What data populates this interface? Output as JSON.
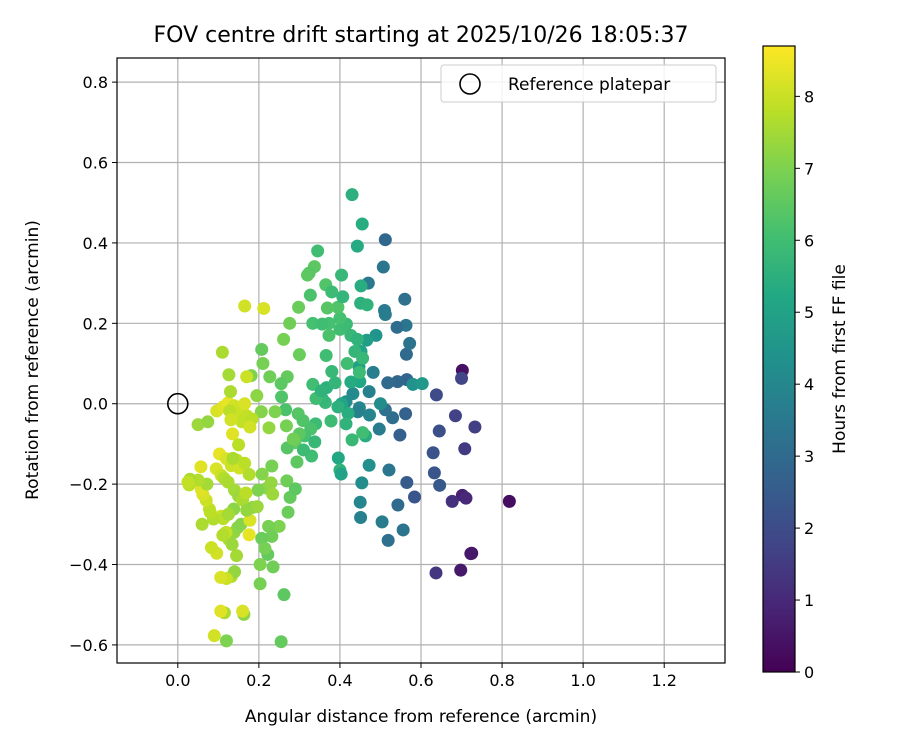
{
  "chart_data": {
    "type": "scatter",
    "title": "FOV centre drift starting at 2025/10/26 18:05:37",
    "xlabel": "Angular distance from reference (arcmin)",
    "ylabel": "Rotation from reference (arcmin)",
    "xlim": [
      -0.15,
      1.35
    ],
    "ylim": [
      -0.645,
      0.86
    ],
    "xticks": [
      0.0,
      0.2,
      0.4,
      0.6,
      0.8,
      1.0,
      1.2
    ],
    "yticks": [
      -0.6,
      -0.4,
      -0.2,
      0.0,
      0.2,
      0.4,
      0.6,
      0.8
    ],
    "xtick_labels": [
      "0.0",
      "0.2",
      "0.4",
      "0.6",
      "0.8",
      "1.0",
      "1.2"
    ],
    "ytick_labels": [
      "−0.6",
      "−0.4",
      "−0.2",
      "0.0",
      "0.2",
      "0.4",
      "0.6",
      "0.8"
    ],
    "grid": true,
    "legend": {
      "label": "Reference platepar",
      "position": "top-right"
    },
    "reference_point": {
      "x": 0.0,
      "y": 0.0
    },
    "colorbar": {
      "label": "Hours from first FF file",
      "range": [
        0,
        8.7
      ],
      "ticks": [
        0,
        1,
        2,
        3,
        4,
        5,
        6,
        7,
        8
      ],
      "tick_labels": [
        "0",
        "1",
        "2",
        "3",
        "4",
        "5",
        "6",
        "7",
        "8"
      ],
      "colormap": "viridis"
    },
    "points": [
      {
        "x": 0.818,
        "y": -0.243,
        "c": 0.3
      },
      {
        "x": 0.725,
        "y": -0.372,
        "c": 0.2
      },
      {
        "x": 0.723,
        "y": -0.373,
        "c": 0.6
      },
      {
        "x": 0.702,
        "y": 0.083,
        "c": 0.4
      },
      {
        "x": 0.698,
        "y": -0.414,
        "c": 0.6
      },
      {
        "x": 0.702,
        "y": -0.228,
        "c": 0.8
      },
      {
        "x": 0.711,
        "y": -0.235,
        "c": 1.0
      },
      {
        "x": 0.677,
        "y": -0.243,
        "c": 1.2
      },
      {
        "x": 0.637,
        "y": -0.421,
        "c": 1.4
      },
      {
        "x": 0.733,
        "y": -0.058,
        "c": 1.6
      },
      {
        "x": 0.7,
        "y": 0.063,
        "c": 1.8
      },
      {
        "x": 0.708,
        "y": -0.112,
        "c": 1.5
      },
      {
        "x": 0.685,
        "y": -0.03,
        "c": 1.7
      },
      {
        "x": 0.638,
        "y": 0.022,
        "c": 2.0
      },
      {
        "x": 0.645,
        "y": -0.068,
        "c": 2.1
      },
      {
        "x": 0.63,
        "y": -0.122,
        "c": 2.2
      },
      {
        "x": 0.633,
        "y": -0.172,
        "c": 2.3
      },
      {
        "x": 0.646,
        "y": -0.203,
        "c": 2.4
      },
      {
        "x": 0.584,
        "y": -0.232,
        "c": 2.3
      },
      {
        "x": 0.565,
        "y": -0.196,
        "c": 2.5
      },
      {
        "x": 0.548,
        "y": -0.078,
        "c": 2.6
      },
      {
        "x": 0.562,
        "y": -0.025,
        "c": 2.7
      },
      {
        "x": 0.565,
        "y": 0.06,
        "c": 2.8
      },
      {
        "x": 0.542,
        "y": 0.055,
        "c": 2.9
      },
      {
        "x": 0.518,
        "y": 0.052,
        "c": 3.0
      },
      {
        "x": 0.53,
        "y": -0.035,
        "c": 3.1
      },
      {
        "x": 0.512,
        "y": -0.015,
        "c": 3.2
      },
      {
        "x": 0.564,
        "y": 0.123,
        "c": 3.0
      },
      {
        "x": 0.56,
        "y": 0.26,
        "c": 3.2
      },
      {
        "x": 0.563,
        "y": 0.195,
        "c": 3.4
      },
      {
        "x": 0.572,
        "y": 0.15,
        "c": 3.3
      },
      {
        "x": 0.541,
        "y": 0.19,
        "c": 3.1
      },
      {
        "x": 0.512,
        "y": 0.408,
        "c": 2.9
      },
      {
        "x": 0.51,
        "y": 0.232,
        "c": 3.5
      },
      {
        "x": 0.512,
        "y": 0.222,
        "c": 3.6
      },
      {
        "x": 0.507,
        "y": 0.34,
        "c": 3.4
      },
      {
        "x": 0.47,
        "y": 0.3,
        "c": 3.5
      },
      {
        "x": 0.482,
        "y": 0.078,
        "c": 3.7
      },
      {
        "x": 0.472,
        "y": 0.03,
        "c": 3.8
      },
      {
        "x": 0.473,
        "y": -0.028,
        "c": 3.9
      },
      {
        "x": 0.448,
        "y": -0.01,
        "c": 4.0
      },
      {
        "x": 0.444,
        "y": -0.02,
        "c": 3.8
      },
      {
        "x": 0.432,
        "y": 0.025,
        "c": 4.1
      },
      {
        "x": 0.415,
        "y": 0.005,
        "c": 4.2
      },
      {
        "x": 0.497,
        "y": -0.063,
        "c": 3.6
      },
      {
        "x": 0.521,
        "y": -0.165,
        "c": 3.4
      },
      {
        "x": 0.556,
        "y": -0.314,
        "c": 3.3
      },
      {
        "x": 0.543,
        "y": -0.252,
        "c": 3.0
      },
      {
        "x": 0.519,
        "y": -0.34,
        "c": 3.2
      },
      {
        "x": 0.504,
        "y": -0.294,
        "c": 3.6
      },
      {
        "x": 0.451,
        "y": -0.283,
        "c": 3.8
      },
      {
        "x": 0.45,
        "y": -0.245,
        "c": 4.0
      },
      {
        "x": 0.454,
        "y": -0.197,
        "c": 4.2
      },
      {
        "x": 0.472,
        "y": -0.153,
        "c": 4.3
      },
      {
        "x": 0.58,
        "y": 0.048,
        "c": 4.4
      },
      {
        "x": 0.603,
        "y": 0.05,
        "c": 4.6
      },
      {
        "x": 0.5,
        "y": 0.0,
        "c": 4.2
      },
      {
        "x": 0.489,
        "y": 0.17,
        "c": 4.5
      },
      {
        "x": 0.466,
        "y": 0.158,
        "c": 4.8
      },
      {
        "x": 0.452,
        "y": 0.13,
        "c": 5.0
      },
      {
        "x": 0.447,
        "y": 0.092,
        "c": 4.9
      },
      {
        "x": 0.449,
        "y": 0.055,
        "c": 5.2
      },
      {
        "x": 0.427,
        "y": 0.054,
        "c": 5.3
      },
      {
        "x": 0.42,
        "y": -0.024,
        "c": 5.4
      },
      {
        "x": 0.404,
        "y": 0.0,
        "c": 5.1
      },
      {
        "x": 0.395,
        "y": -0.008,
        "c": 5.5
      },
      {
        "x": 0.415,
        "y": -0.05,
        "c": 5.6
      },
      {
        "x": 0.396,
        "y": -0.135,
        "c": 5.2
      },
      {
        "x": 0.4,
        "y": -0.165,
        "c": 5.6
      },
      {
        "x": 0.403,
        "y": -0.175,
        "c": 5.0
      },
      {
        "x": 0.43,
        "y": -0.09,
        "c": 5.8
      },
      {
        "x": 0.463,
        "y": -0.08,
        "c": 5.4
      },
      {
        "x": 0.456,
        "y": -0.072,
        "c": 6.0
      },
      {
        "x": 0.378,
        "y": -0.043,
        "c": 5.9
      },
      {
        "x": 0.364,
        "y": 0.003,
        "c": 5.8
      },
      {
        "x": 0.367,
        "y": 0.04,
        "c": 5.5
      },
      {
        "x": 0.356,
        "y": 0.013,
        "c": 5.7
      },
      {
        "x": 0.341,
        "y": 0.013,
        "c": 6.0
      },
      {
        "x": 0.34,
        "y": -0.05,
        "c": 5.9
      },
      {
        "x": 0.333,
        "y": 0.048,
        "c": 6.0
      },
      {
        "x": 0.354,
        "y": 0.032,
        "c": 5.6
      },
      {
        "x": 0.388,
        "y": 0.052,
        "c": 5.7
      },
      {
        "x": 0.38,
        "y": 0.08,
        "c": 5.8
      },
      {
        "x": 0.366,
        "y": 0.12,
        "c": 6.0
      },
      {
        "x": 0.373,
        "y": 0.17,
        "c": 6.2
      },
      {
        "x": 0.373,
        "y": 0.2,
        "c": 6.1
      },
      {
        "x": 0.4,
        "y": 0.185,
        "c": 6.0
      },
      {
        "x": 0.416,
        "y": 0.198,
        "c": 5.9
      },
      {
        "x": 0.427,
        "y": 0.17,
        "c": 5.8
      },
      {
        "x": 0.443,
        "y": 0.16,
        "c": 5.6
      },
      {
        "x": 0.437,
        "y": 0.13,
        "c": 5.7
      },
      {
        "x": 0.456,
        "y": 0.113,
        "c": 5.8
      },
      {
        "x": 0.448,
        "y": 0.078,
        "c": 5.9
      },
      {
        "x": 0.418,
        "y": 0.1,
        "c": 6.0
      },
      {
        "x": 0.4,
        "y": 0.213,
        "c": 6.1
      },
      {
        "x": 0.395,
        "y": 0.24,
        "c": 6.3
      },
      {
        "x": 0.369,
        "y": 0.238,
        "c": 6.4
      },
      {
        "x": 0.365,
        "y": 0.296,
        "c": 6.3
      },
      {
        "x": 0.337,
        "y": 0.341,
        "c": 6.5
      },
      {
        "x": 0.324,
        "y": 0.325,
        "c": 6.4
      },
      {
        "x": 0.327,
        "y": 0.27,
        "c": 6.2
      },
      {
        "x": 0.333,
        "y": 0.2,
        "c": 6.1
      },
      {
        "x": 0.356,
        "y": 0.198,
        "c": 6.0
      },
      {
        "x": 0.38,
        "y": 0.278,
        "c": 5.9
      },
      {
        "x": 0.407,
        "y": 0.266,
        "c": 5.7
      },
      {
        "x": 0.404,
        "y": 0.32,
        "c": 5.8
      },
      {
        "x": 0.43,
        "y": 0.52,
        "c": 5.5
      },
      {
        "x": 0.455,
        "y": 0.447,
        "c": 5.4
      },
      {
        "x": 0.443,
        "y": 0.392,
        "c": 5.3
      },
      {
        "x": 0.452,
        "y": 0.293,
        "c": 5.4
      },
      {
        "x": 0.451,
        "y": 0.25,
        "c": 5.5
      },
      {
        "x": 0.467,
        "y": 0.246,
        "c": 5.6
      },
      {
        "x": 0.345,
        "y": 0.38,
        "c": 6.0
      },
      {
        "x": 0.32,
        "y": 0.32,
        "c": 6.5
      },
      {
        "x": 0.298,
        "y": 0.24,
        "c": 6.7
      },
      {
        "x": 0.276,
        "y": 0.2,
        "c": 6.8
      },
      {
        "x": 0.261,
        "y": 0.16,
        "c": 6.9
      },
      {
        "x": 0.3,
        "y": 0.122,
        "c": 6.7
      },
      {
        "x": 0.27,
        "y": 0.067,
        "c": 6.6
      },
      {
        "x": 0.255,
        "y": 0.05,
        "c": 6.5
      },
      {
        "x": 0.256,
        "y": 0.017,
        "c": 6.3
      },
      {
        "x": 0.266,
        "y": -0.015,
        "c": 6.2
      },
      {
        "x": 0.297,
        "y": -0.025,
        "c": 6.4
      },
      {
        "x": 0.309,
        "y": -0.042,
        "c": 6.3
      },
      {
        "x": 0.328,
        "y": -0.063,
        "c": 6.2
      },
      {
        "x": 0.313,
        "y": -0.08,
        "c": 6.1
      },
      {
        "x": 0.3,
        "y": -0.075,
        "c": 6.5
      },
      {
        "x": 0.289,
        "y": -0.097,
        "c": 6.6
      },
      {
        "x": 0.27,
        "y": -0.11,
        "c": 6.4
      },
      {
        "x": 0.294,
        "y": -0.145,
        "c": 6.5
      },
      {
        "x": 0.33,
        "y": -0.13,
        "c": 6.0
      },
      {
        "x": 0.338,
        "y": -0.095,
        "c": 5.8
      },
      {
        "x": 0.31,
        "y": -0.115,
        "c": 5.9
      },
      {
        "x": 0.285,
        "y": -0.088,
        "c": 6.8
      },
      {
        "x": 0.268,
        "y": -0.055,
        "c": 6.9
      },
      {
        "x": 0.24,
        "y": -0.02,
        "c": 7.0
      },
      {
        "x": 0.227,
        "y": 0.067,
        "c": 6.8
      },
      {
        "x": 0.21,
        "y": 0.1,
        "c": 6.9
      },
      {
        "x": 0.207,
        "y": 0.135,
        "c": 6.6
      },
      {
        "x": 0.181,
        "y": 0.07,
        "c": 7.0
      },
      {
        "x": 0.195,
        "y": 0.02,
        "c": 7.2
      },
      {
        "x": 0.206,
        "y": -0.02,
        "c": 7.1
      },
      {
        "x": 0.225,
        "y": -0.06,
        "c": 7.3
      },
      {
        "x": 0.232,
        "y": -0.155,
        "c": 6.9
      },
      {
        "x": 0.208,
        "y": -0.175,
        "c": 7.1
      },
      {
        "x": 0.22,
        "y": -0.21,
        "c": 7.2
      },
      {
        "x": 0.198,
        "y": -0.215,
        "c": 7.0
      },
      {
        "x": 0.23,
        "y": -0.197,
        "c": 7.3
      },
      {
        "x": 0.234,
        "y": -0.225,
        "c": 7.4
      },
      {
        "x": 0.269,
        "y": -0.192,
        "c": 6.8
      },
      {
        "x": 0.277,
        "y": -0.233,
        "c": 6.6
      },
      {
        "x": 0.29,
        "y": -0.212,
        "c": 6.5
      },
      {
        "x": 0.272,
        "y": -0.27,
        "c": 6.7
      },
      {
        "x": 0.25,
        "y": -0.305,
        "c": 7.0
      },
      {
        "x": 0.224,
        "y": -0.305,
        "c": 6.9
      },
      {
        "x": 0.232,
        "y": -0.33,
        "c": 6.8
      },
      {
        "x": 0.207,
        "y": -0.335,
        "c": 6.7
      },
      {
        "x": 0.222,
        "y": -0.375,
        "c": 6.6
      },
      {
        "x": 0.215,
        "y": -0.36,
        "c": 6.9
      },
      {
        "x": 0.203,
        "y": -0.4,
        "c": 7.0
      },
      {
        "x": 0.235,
        "y": -0.406,
        "c": 6.8
      },
      {
        "x": 0.203,
        "y": -0.448,
        "c": 6.9
      },
      {
        "x": 0.262,
        "y": -0.475,
        "c": 6.5
      },
      {
        "x": 0.255,
        "y": -0.592,
        "c": 6.6
      },
      {
        "x": 0.163,
        "y": -0.524,
        "c": 7.2
      },
      {
        "x": 0.12,
        "y": -0.59,
        "c": 7.0
      },
      {
        "x": 0.115,
        "y": -0.52,
        "c": 7.6
      },
      {
        "x": 0.16,
        "y": -0.516,
        "c": 8.2
      },
      {
        "x": 0.106,
        "y": -0.516,
        "c": 8.3
      },
      {
        "x": 0.09,
        "y": -0.577,
        "c": 8.1
      },
      {
        "x": 0.132,
        "y": -0.43,
        "c": 7.7
      },
      {
        "x": 0.14,
        "y": -0.418,
        "c": 7.3
      },
      {
        "x": 0.12,
        "y": -0.435,
        "c": 8.0
      },
      {
        "x": 0.106,
        "y": -0.432,
        "c": 8.2
      },
      {
        "x": 0.145,
        "y": -0.378,
        "c": 7.5
      },
      {
        "x": 0.126,
        "y": -0.338,
        "c": 7.6
      },
      {
        "x": 0.134,
        "y": -0.35,
        "c": 7.4
      },
      {
        "x": 0.139,
        "y": -0.32,
        "c": 7.3
      },
      {
        "x": 0.148,
        "y": -0.308,
        "c": 7.2
      },
      {
        "x": 0.156,
        "y": -0.3,
        "c": 7.1
      },
      {
        "x": 0.178,
        "y": -0.29,
        "c": 8.2
      },
      {
        "x": 0.176,
        "y": -0.326,
        "c": 8.4
      },
      {
        "x": 0.119,
        "y": -0.32,
        "c": 7.9
      },
      {
        "x": 0.111,
        "y": -0.327,
        "c": 7.7
      },
      {
        "x": 0.096,
        "y": -0.372,
        "c": 8.1
      },
      {
        "x": 0.083,
        "y": -0.358,
        "c": 8.0
      },
      {
        "x": 0.107,
        "y": -0.28,
        "c": 8.0
      },
      {
        "x": 0.112,
        "y": -0.286,
        "c": 7.8
      },
      {
        "x": 0.088,
        "y": -0.287,
        "c": 7.7
      },
      {
        "x": 0.078,
        "y": -0.262,
        "c": 7.9
      },
      {
        "x": 0.08,
        "y": -0.27,
        "c": 7.8
      },
      {
        "x": 0.06,
        "y": -0.3,
        "c": 7.6
      },
      {
        "x": 0.07,
        "y": -0.24,
        "c": 8.0
      },
      {
        "x": 0.062,
        "y": -0.226,
        "c": 8.2
      },
      {
        "x": 0.058,
        "y": -0.213,
        "c": 8.3
      },
      {
        "x": 0.072,
        "y": -0.2,
        "c": 7.5
      },
      {
        "x": 0.05,
        "y": -0.19,
        "c": 7.7
      },
      {
        "x": 0.03,
        "y": -0.188,
        "c": 7.6
      },
      {
        "x": 0.028,
        "y": -0.202,
        "c": 7.8
      },
      {
        "x": 0.025,
        "y": -0.195,
        "c": 7.9
      },
      {
        "x": 0.057,
        "y": -0.157,
        "c": 8.3
      },
      {
        "x": 0.095,
        "y": -0.162,
        "c": 8.2
      },
      {
        "x": 0.107,
        "y": -0.178,
        "c": 8.0
      },
      {
        "x": 0.114,
        "y": -0.185,
        "c": 7.7
      },
      {
        "x": 0.124,
        "y": -0.195,
        "c": 7.6
      },
      {
        "x": 0.14,
        "y": -0.215,
        "c": 7.5
      },
      {
        "x": 0.15,
        "y": -0.23,
        "c": 7.4
      },
      {
        "x": 0.16,
        "y": -0.24,
        "c": 7.6
      },
      {
        "x": 0.168,
        "y": -0.222,
        "c": 7.8
      },
      {
        "x": 0.185,
        "y": -0.258,
        "c": 7.2
      },
      {
        "x": 0.196,
        "y": -0.256,
        "c": 7.4
      },
      {
        "x": 0.17,
        "y": -0.265,
        "c": 7.3
      },
      {
        "x": 0.138,
        "y": -0.262,
        "c": 7.2
      },
      {
        "x": 0.125,
        "y": -0.275,
        "c": 7.5
      },
      {
        "x": 0.103,
        "y": -0.125,
        "c": 8.4
      },
      {
        "x": 0.12,
        "y": -0.137,
        "c": 8.2
      },
      {
        "x": 0.132,
        "y": -0.154,
        "c": 8.0
      },
      {
        "x": 0.145,
        "y": -0.14,
        "c": 7.9
      },
      {
        "x": 0.152,
        "y": -0.16,
        "c": 8.1
      },
      {
        "x": 0.165,
        "y": -0.148,
        "c": 7.8
      },
      {
        "x": 0.176,
        "y": -0.176,
        "c": 7.7
      },
      {
        "x": 0.136,
        "y": -0.136,
        "c": 7.6
      },
      {
        "x": 0.05,
        "y": -0.052,
        "c": 7.4
      },
      {
        "x": 0.074,
        "y": -0.045,
        "c": 7.3
      },
      {
        "x": 0.096,
        "y": -0.018,
        "c": 8.2
      },
      {
        "x": 0.112,
        "y": -0.008,
        "c": 8.3
      },
      {
        "x": 0.124,
        "y": 0.002,
        "c": 8.4
      },
      {
        "x": 0.139,
        "y": -0.005,
        "c": 8.1
      },
      {
        "x": 0.15,
        "y": -0.02,
        "c": 8.0
      },
      {
        "x": 0.158,
        "y": -0.045,
        "c": 7.9
      },
      {
        "x": 0.17,
        "y": -0.03,
        "c": 7.9
      },
      {
        "x": 0.183,
        "y": -0.038,
        "c": 7.8
      },
      {
        "x": 0.178,
        "y": -0.058,
        "c": 8.1
      },
      {
        "x": 0.165,
        "y": 0.0,
        "c": 8.2
      },
      {
        "x": 0.17,
        "y": 0.067,
        "c": 8.0
      },
      {
        "x": 0.13,
        "y": 0.03,
        "c": 7.6
      },
      {
        "x": 0.126,
        "y": 0.072,
        "c": 7.5
      },
      {
        "x": 0.11,
        "y": 0.128,
        "c": 7.6
      },
      {
        "x": 0.128,
        "y": -0.018,
        "c": 7.8
      },
      {
        "x": 0.135,
        "y": -0.075,
        "c": 8.3
      },
      {
        "x": 0.131,
        "y": -0.04,
        "c": 8.1
      },
      {
        "x": 0.165,
        "y": 0.243,
        "c": 8.1
      },
      {
        "x": 0.212,
        "y": 0.237,
        "c": 8.2
      },
      {
        "x": 0.15,
        "y": -0.102,
        "c": 7.8
      }
    ]
  }
}
